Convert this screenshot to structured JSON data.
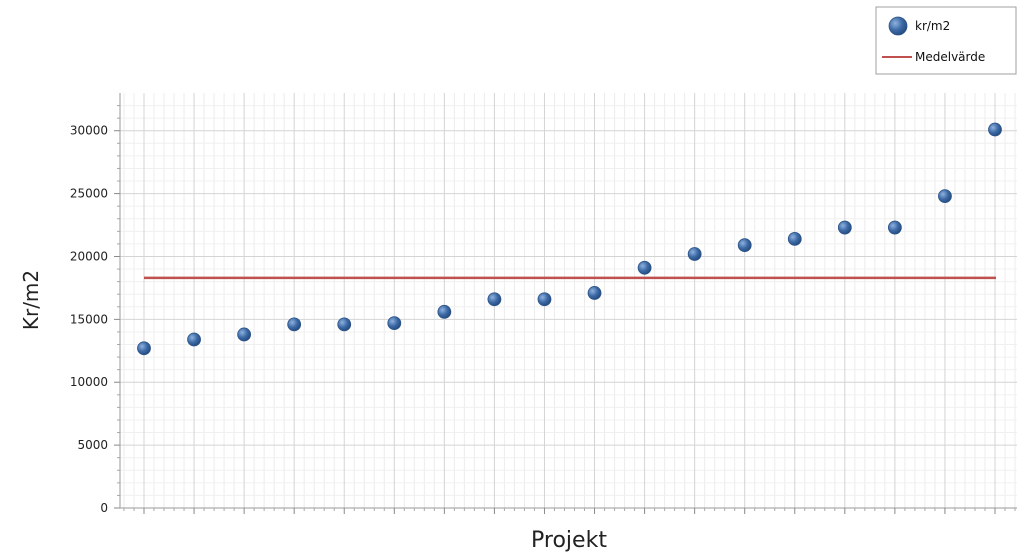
{
  "chart_data": {
    "type": "scatter",
    "title": "",
    "xlabel": "Projekt",
    "ylabel": "Kr/m2",
    "ylim": [
      0,
      33000
    ],
    "yticks": [
      0,
      5000,
      10000,
      15000,
      20000,
      25000,
      30000
    ],
    "grid": true,
    "legend_position": "top-right",
    "series": [
      {
        "name": "kr/m2",
        "kind": "scatter",
        "color": "#3d6aa5",
        "x": [
          1,
          2,
          3,
          4,
          5,
          6,
          7,
          8,
          9,
          10,
          11,
          12,
          13,
          14,
          15,
          16,
          17,
          18
        ],
        "values": [
          12700,
          13400,
          13800,
          14600,
          14600,
          14700,
          15600,
          16600,
          16600,
          17100,
          19100,
          20200,
          20900,
          21400,
          22300,
          22300,
          24800,
          30100
        ]
      },
      {
        "name": "Medelvärde",
        "kind": "line",
        "color": "#c0504d",
        "values": [
          18300
        ]
      }
    ]
  }
}
